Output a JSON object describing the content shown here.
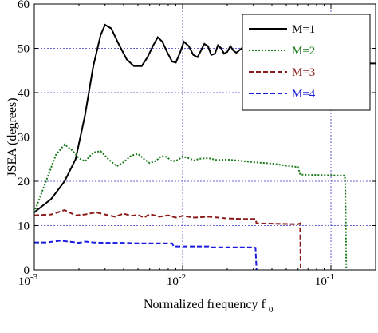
{
  "chart_data": {
    "type": "line",
    "xlabel": "Normalized frequency f",
    "xlabel_sub": "0",
    "ylabel": "JSEA (degrees)",
    "xscale": "log",
    "xlim": [
      0.001,
      0.2
    ],
    "ylim": [
      0,
      60
    ],
    "grid": true,
    "legend_position": "top-right",
    "x_ticks": [
      {
        "value": 0.001,
        "base": "10",
        "exp": "-3"
      },
      {
        "value": 0.01,
        "base": "10",
        "exp": "-2"
      },
      {
        "value": 0.1,
        "base": "10",
        "exp": "-1"
      }
    ],
    "y_ticks": [
      0,
      10,
      20,
      30,
      40,
      50,
      60
    ],
    "series": [
      {
        "name": "M=1",
        "color": "#000000",
        "dash": "solid",
        "points": [
          [
            0.001,
            13
          ],
          [
            0.0013,
            16
          ],
          [
            0.0016,
            20
          ],
          [
            0.0019,
            25
          ],
          [
            0.0022,
            35
          ],
          [
            0.0025,
            46
          ],
          [
            0.0028,
            53
          ],
          [
            0.003,
            55.3
          ],
          [
            0.0033,
            54.5
          ],
          [
            0.0037,
            51
          ],
          [
            0.0042,
            47.5
          ],
          [
            0.0047,
            46
          ],
          [
            0.0053,
            46
          ],
          [
            0.0058,
            48
          ],
          [
            0.0063,
            50.5
          ],
          [
            0.0068,
            52.5
          ],
          [
            0.0073,
            51.5
          ],
          [
            0.0079,
            49
          ],
          [
            0.0085,
            47
          ],
          [
            0.009,
            46.8
          ],
          [
            0.0096,
            49
          ],
          [
            0.0102,
            51.5
          ],
          [
            0.011,
            50.5
          ],
          [
            0.0118,
            48.5
          ],
          [
            0.0126,
            48
          ],
          [
            0.0133,
            49.5
          ],
          [
            0.014,
            51
          ],
          [
            0.0148,
            50.5
          ],
          [
            0.0156,
            48.5
          ],
          [
            0.0165,
            48.8
          ],
          [
            0.0173,
            50.7
          ],
          [
            0.0182,
            50
          ],
          [
            0.019,
            48.8
          ],
          [
            0.02,
            49.2
          ],
          [
            0.021,
            50.5
          ],
          [
            0.022,
            49.5
          ],
          [
            0.023,
            49
          ],
          [
            0.025,
            50
          ],
          [
            0.027,
            49.3
          ],
          [
            0.03,
            49.7
          ],
          [
            0.035,
            49.3
          ],
          [
            0.04,
            49.6
          ],
          [
            0.05,
            49.4
          ],
          [
            0.06,
            49.5
          ],
          [
            0.062,
            48.8
          ],
          [
            0.09,
            48.8
          ],
          [
            0.12,
            48.4
          ],
          [
            0.125,
            48.4
          ],
          [
            0.128,
            46.6
          ],
          [
            0.2,
            46.6
          ]
        ]
      },
      {
        "name": "M=2",
        "color": "#1a7a1a",
        "dash": "dotted",
        "points": [
          [
            0.001,
            13
          ],
          [
            0.0012,
            20
          ],
          [
            0.0014,
            26
          ],
          [
            0.0016,
            28.3
          ],
          [
            0.0018,
            27
          ],
          [
            0.002,
            25.2
          ],
          [
            0.0022,
            24.5
          ],
          [
            0.0025,
            26.5
          ],
          [
            0.0028,
            26.8
          ],
          [
            0.0032,
            24.8
          ],
          [
            0.0036,
            23.4
          ],
          [
            0.004,
            24.3
          ],
          [
            0.0045,
            25.8
          ],
          [
            0.005,
            26.2
          ],
          [
            0.0055,
            25
          ],
          [
            0.006,
            24.1
          ],
          [
            0.0066,
            24.6
          ],
          [
            0.0072,
            25.7
          ],
          [
            0.0078,
            25.5
          ],
          [
            0.0085,
            24.5
          ],
          [
            0.0093,
            24.8
          ],
          [
            0.01,
            25.6
          ],
          [
            0.011,
            25.2
          ],
          [
            0.012,
            24.7
          ],
          [
            0.013,
            25.1
          ],
          [
            0.015,
            25.2
          ],
          [
            0.017,
            24.8
          ],
          [
            0.02,
            24.9
          ],
          [
            0.025,
            24.6
          ],
          [
            0.03,
            24.3
          ],
          [
            0.04,
            24
          ],
          [
            0.05,
            23.5
          ],
          [
            0.06,
            23.2
          ],
          [
            0.062,
            21.5
          ],
          [
            0.12,
            21.3
          ],
          [
            0.124,
            21.3
          ],
          [
            0.125,
            19.5
          ],
          [
            0.127,
            0
          ]
        ]
      },
      {
        "name": "M=3",
        "color": "#8b1a1a",
        "dash": "dashed",
        "points": [
          [
            0.001,
            12.3
          ],
          [
            0.0013,
            12.5
          ],
          [
            0.0016,
            13.5
          ],
          [
            0.0019,
            12.3
          ],
          [
            0.0022,
            12.5
          ],
          [
            0.0026,
            13
          ],
          [
            0.003,
            12.5
          ],
          [
            0.0035,
            12
          ],
          [
            0.004,
            12.7
          ],
          [
            0.0045,
            12.2
          ],
          [
            0.005,
            12.4
          ],
          [
            0.0055,
            11.8
          ],
          [
            0.006,
            12.6
          ],
          [
            0.007,
            12
          ],
          [
            0.008,
            12.3
          ],
          [
            0.009,
            11.8
          ],
          [
            0.01,
            12.2
          ],
          [
            0.012,
            11.8
          ],
          [
            0.015,
            12
          ],
          [
            0.02,
            11.6
          ],
          [
            0.025,
            11.5
          ],
          [
            0.031,
            11.5
          ],
          [
            0.0315,
            10.5
          ],
          [
            0.06,
            10.3
          ],
          [
            0.062,
            10.5
          ],
          [
            0.0625,
            0
          ]
        ]
      },
      {
        "name": "M=4",
        "color": "#1a1ae0",
        "dash": "dashed",
        "points": [
          [
            0.001,
            6.2
          ],
          [
            0.0012,
            6.2
          ],
          [
            0.0015,
            6.6
          ],
          [
            0.0018,
            6.3
          ],
          [
            0.002,
            6.1
          ],
          [
            0.0022,
            6.4
          ],
          [
            0.0025,
            6.2
          ],
          [
            0.003,
            6.1
          ],
          [
            0.004,
            6.1
          ],
          [
            0.005,
            6
          ],
          [
            0.006,
            6
          ],
          [
            0.0085,
            6
          ],
          [
            0.0087,
            5.3
          ],
          [
            0.015,
            5.3
          ],
          [
            0.0155,
            5.1
          ],
          [
            0.03,
            5.1
          ],
          [
            0.031,
            5
          ],
          [
            0.0315,
            0
          ]
        ]
      }
    ]
  }
}
